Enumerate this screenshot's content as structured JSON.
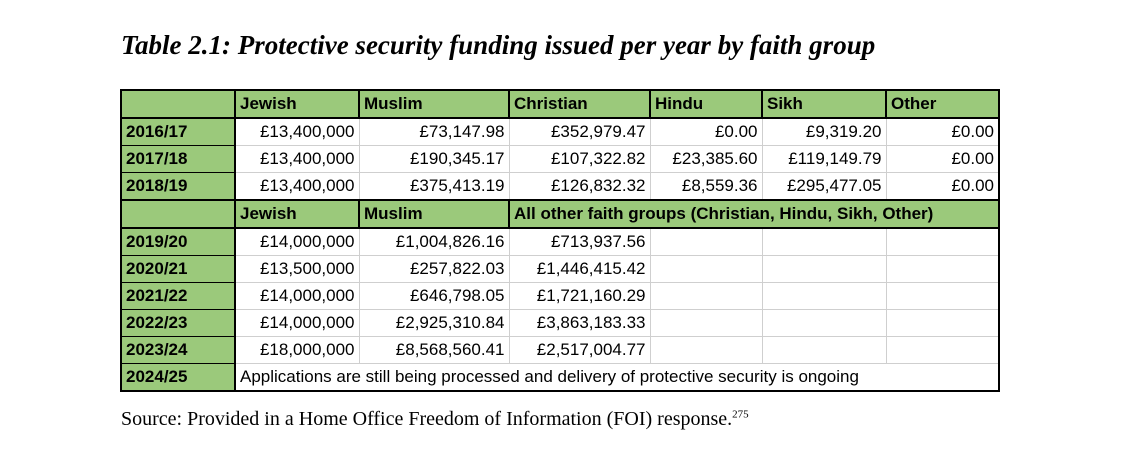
{
  "title": "Table 2.1: Protective security funding issued per year by faith group",
  "header_a": [
    "Jewish",
    "Muslim",
    "Christian",
    "Hindu",
    "Sikh",
    "Other"
  ],
  "rows_a": [
    {
      "year": "2016/17",
      "values": [
        "£13,400,000",
        "£73,147.98",
        "£352,979.47",
        "£0.00",
        "£9,319.20",
        "£0.00"
      ]
    },
    {
      "year": "2017/18",
      "values": [
        "£13,400,000",
        "£190,345.17",
        "£107,322.82",
        "£23,385.60",
        "£119,149.79",
        "£0.00"
      ]
    },
    {
      "year": "2018/19",
      "values": [
        "£13,400,000",
        "£375,413.19",
        "£126,832.32",
        "£8,559.36",
        "£295,477.05",
        "£0.00"
      ]
    }
  ],
  "header_b": [
    "Jewish",
    "Muslim",
    "All other faith groups (Christian, Hindu, Sikh, Other)"
  ],
  "rows_b": [
    {
      "year": "2019/20",
      "values": [
        "£14,000,000",
        "£1,004,826.16",
        "£713,937.56"
      ]
    },
    {
      "year": "2020/21",
      "values": [
        "£13,500,000",
        "£257,822.03",
        "£1,446,415.42"
      ]
    },
    {
      "year": "2021/22",
      "values": [
        "£14,000,000",
        "£646,798.05",
        "£1,721,160.29"
      ]
    },
    {
      "year": "2022/23",
      "values": [
        "£14,000,000",
        "£2,925,310.84",
        "£3,863,183.33"
      ]
    },
    {
      "year": "2023/24",
      "values": [
        "£18,000,000",
        "£8,568,560.41",
        "£2,517,004.77"
      ]
    }
  ],
  "final_row": {
    "year": "2024/25",
    "note": "Applications are still being processed and delivery of protective security is ongoing"
  },
  "source": {
    "text": "Source: Provided in a Home Office Freedom of Information (FOI) response.",
    "footnote": "275"
  },
  "colors": {
    "header_green": "#9bc97b",
    "border": "#000000"
  }
}
